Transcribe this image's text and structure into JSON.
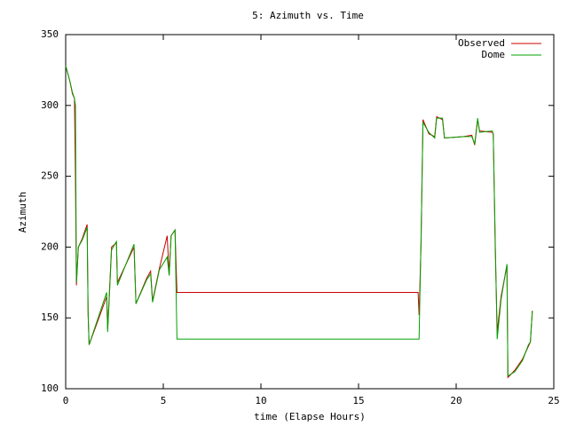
{
  "chart_data": {
    "type": "line",
    "title": "5: Azimuth vs. Time",
    "xlabel": "time (Elapse Hours)",
    "ylabel": "Azimuth",
    "x": [
      0,
      0.2,
      0.35,
      0.45,
      0.5,
      0.55,
      0.65,
      0.85,
      1.1,
      1.15,
      1.2,
      2.1,
      2.15,
      2.35,
      2.6,
      2.65,
      3.5,
      3.6,
      4.15,
      4.35,
      4.45,
      4.8,
      5.2,
      5.3,
      5.4,
      5.6,
      5.7,
      18.05,
      18.1,
      18.2,
      18.3,
      18.6,
      18.9,
      19.0,
      19.3,
      19.4,
      20.4,
      20.8,
      20.95,
      21.1,
      21.2,
      21.85,
      21.9,
      22.0,
      22.1,
      22.3,
      22.6,
      22.65,
      23.0,
      23.4,
      23.7,
      23.8,
      23.9
    ],
    "series": [
      {
        "name": "Observed",
        "color": "#cc0000",
        "values": [
          328,
          318,
          308,
          305,
          250,
          173,
          200,
          206,
          216,
          152,
          131,
          165,
          142,
          200,
          203,
          175,
          200,
          160,
          178,
          183,
          162,
          185,
          208,
          180,
          208,
          212,
          168,
          168,
          152,
          202,
          290,
          280,
          278,
          292,
          290,
          277,
          278,
          279,
          272,
          290,
          282,
          281,
          280,
          200,
          140,
          165,
          187,
          108,
          113,
          121,
          130,
          133,
          155
        ]
      },
      {
        "name": "Dome",
        "color": "#00a000",
        "values": [
          328,
          318,
          309,
          305,
          300,
          175,
          200,
          205,
          214,
          153,
          131,
          168,
          140,
          198,
          204,
          173,
          202,
          160,
          177,
          181,
          161,
          184,
          193,
          180,
          208,
          212,
          135,
          135,
          135,
          205,
          288,
          281,
          277,
          291,
          291,
          277,
          278,
          278,
          273,
          291,
          281,
          282,
          279,
          205,
          135,
          163,
          188,
          109,
          112,
          120,
          131,
          133,
          155
        ]
      }
    ],
    "xlim": [
      0,
      25
    ],
    "xticks": [
      0,
      5,
      10,
      15,
      20,
      25
    ],
    "ylim": [
      100,
      350
    ],
    "yticks": [
      100,
      150,
      200,
      250,
      300,
      350
    ],
    "legend": "top-right",
    "grid": false
  }
}
